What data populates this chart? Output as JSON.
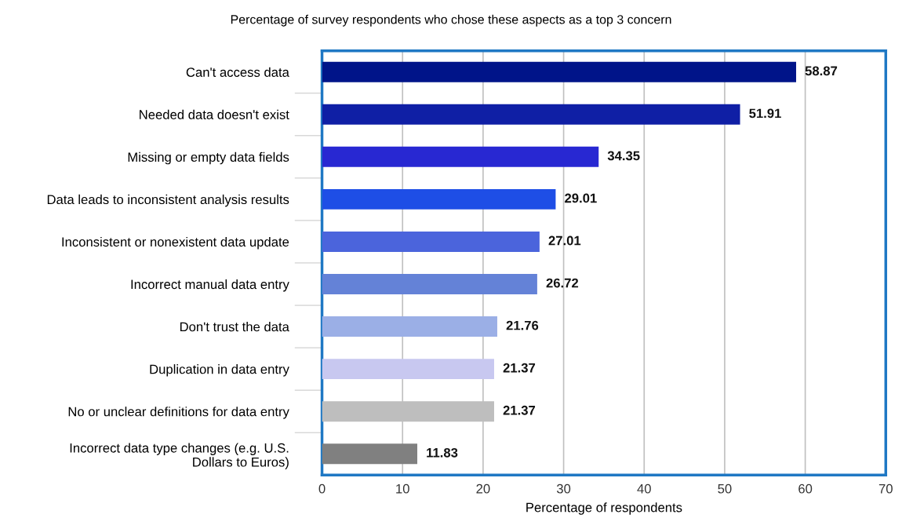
{
  "chart_data": {
    "type": "bar",
    "orientation": "horizontal",
    "title": "Percentage of survey respondents who chose these aspects as a top 3 concern",
    "xlabel": "Percentage of respondents",
    "categories": [
      "Can't access data",
      "Needed data doesn't exist",
      "Missing or empty data fields",
      "Data leads to inconsistent analysis results",
      "Inconsistent or nonexistent data update",
      "Incorrect manual data entry",
      "Don't trust the data",
      "Duplication in data entry",
      "No or unclear definitions for data entry",
      "Incorrect data type changes (e.g. U.S.\nDollars to Euros)"
    ],
    "values": [
      58.87,
      51.91,
      34.35,
      29.01,
      27.01,
      26.72,
      21.76,
      21.37,
      21.37,
      11.83
    ],
    "colors": [
      "#001489",
      "#0f1fa5",
      "#2828d2",
      "#1e4ee6",
      "#4b64dc",
      "#6482d7",
      "#9bafe6",
      "#c8c8f0",
      "#bebebe",
      "#808080"
    ],
    "data_labels": true,
    "xlim": [
      0,
      70
    ],
    "xticks": [
      0,
      10,
      20,
      30,
      40,
      50,
      60,
      70
    ],
    "grid": "x"
  }
}
